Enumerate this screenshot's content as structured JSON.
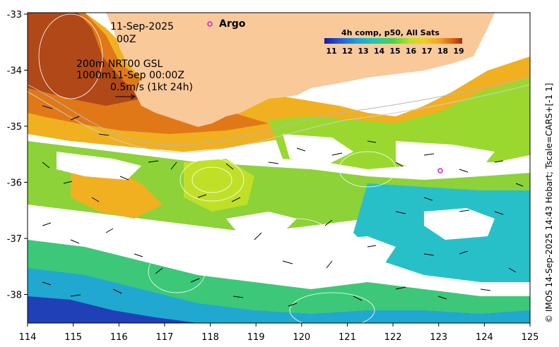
{
  "map": {
    "date_line1": "11-Sep-2025",
    "date_line2": "00Z",
    "depth_line1": "200m  NRT00 GSL",
    "depth_line2": "1000m11-Sep 00:00Z",
    "scale_text": "0.5m/s (1kt 24h)",
    "argo_label": "Argo",
    "side_caption": "© IMOS 14-Sep-2025 14:43 Hobart; Tscale=CARS+[-1 1]",
    "x_ticks": [
      "114",
      "115",
      "116",
      "117",
      "118",
      "119",
      "120",
      "121",
      "122",
      "123",
      "124",
      "125"
    ],
    "y_ticks": [
      "-33",
      "-34",
      "-35",
      "-36",
      "-37",
      "-38"
    ],
    "colors": {
      "land": "#f9c99a",
      "no_data": "#ffffff",
      "argo_marker": "#d020d0"
    }
  },
  "colorbar": {
    "title": "4h comp, p50, All Sats",
    "ticks": [
      "11",
      "12",
      "13",
      "14",
      "15",
      "16",
      "17",
      "18",
      "19"
    ],
    "colors": [
      "#1a1aa8",
      "#1f5fd8",
      "#1aa8d8",
      "#22c8a8",
      "#4cd24a",
      "#b8e02a",
      "#f0d020",
      "#f0a020",
      "#d86010",
      "#a03010"
    ]
  }
}
